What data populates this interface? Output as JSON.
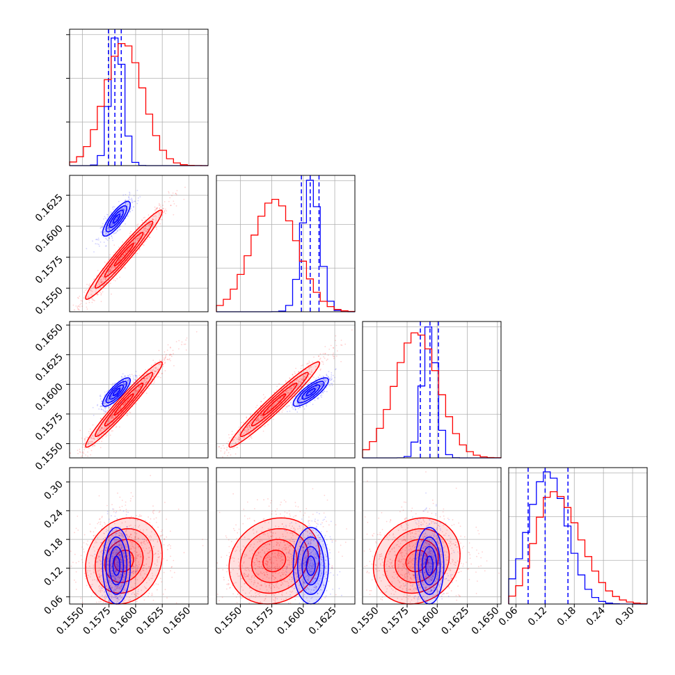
{
  "chart_data": {
    "type": "corner",
    "colors": {
      "series_a": "#0000ff",
      "series_b": "#ff0000",
      "grid": "#b0b0b0",
      "frame": "#000000"
    },
    "params": [
      {
        "range": [
          0.1538,
          0.1668
        ],
        "ticks": [
          0.155,
          0.1575,
          0.16,
          0.1625,
          0.165
        ],
        "tick_labels": [
          "0.1550",
          "0.1575",
          "0.1600",
          "0.1625",
          "0.1650"
        ]
      },
      {
        "range": [
          0.1531,
          0.1641
        ],
        "ticks": [
          0.155,
          0.1575,
          0.16,
          0.1625
        ],
        "tick_labels": [
          "0.1550",
          "0.1575",
          "0.1600",
          "0.1625"
        ]
      },
      {
        "range": [
          0.1538,
          0.1653
        ],
        "ticks": [
          0.155,
          0.1575,
          0.16,
          0.1625,
          0.165
        ],
        "tick_labels": [
          "0.1550",
          "0.1575",
          "0.1600",
          "0.1625",
          "0.1650"
        ]
      },
      {
        "range": [
          0.045,
          0.33
        ],
        "ticks": [
          0.06,
          0.12,
          0.18,
          0.24,
          0.3
        ],
        "tick_labels": [
          "0.06",
          "0.12",
          "0.18",
          "0.24",
          "0.30"
        ]
      }
    ],
    "series": [
      {
        "key": "series_a",
        "color": "#0000ff",
        "params": [
          {
            "mean": 0.1582,
            "sd": 0.00065,
            "quantiles": [
              0.15745,
              0.15805,
              0.15865
            ]
          },
          {
            "mean": 0.1606,
            "sd": 0.0007,
            "quantiles": [
              0.15985,
              0.16055,
              0.16125
            ]
          },
          {
            "mean": 0.15935,
            "sd": 0.0006,
            "quantiles": [
              0.1586,
              0.1594,
              0.1601
            ]
          },
          {
            "mean": 0.125,
            "sd": 0.04,
            "quantiles": [
              0.085,
              0.12,
              0.167
            ]
          }
        ],
        "hist_peaks": [
          1.0,
          1.0,
          1.0,
          1.0
        ]
      },
      {
        "key": "series_b",
        "color": "#ff0000",
        "params": [
          {
            "mean": 0.1589,
            "sd": 0.0018,
            "quantiles": []
          },
          {
            "mean": 0.1577,
            "sd": 0.0018,
            "quantiles": []
          },
          {
            "mean": 0.1583,
            "sd": 0.0018,
            "quantiles": []
          },
          {
            "mean": 0.135,
            "sd": 0.045,
            "quantiles": []
          }
        ],
        "hist_peaks": [
          0.93,
          0.85,
          0.95,
          0.85
        ]
      }
    ],
    "grid": true
  }
}
